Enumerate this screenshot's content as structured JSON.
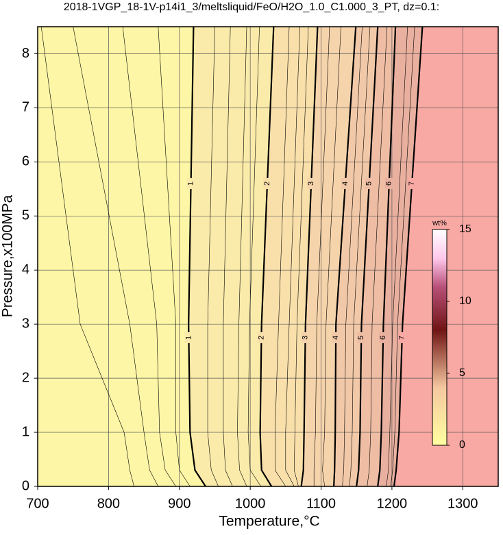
{
  "chart_data": {
    "type": "contour",
    "title": "2018-1VGP_18-1V-p14i1_3/meltsliquid/FeO/H2O_1.0_C1.000_3_PT, dz=0.1:",
    "x_label": "Temperature,°C",
    "y_label": "Pressure,x100MPa",
    "xlim": [
      700,
      1350
    ],
    "ylim": [
      0,
      8.5
    ],
    "xticks": [
      700,
      800,
      900,
      1000,
      1100,
      1200,
      1300
    ],
    "yticks": [
      0,
      1,
      2,
      3,
      4,
      5,
      6,
      7,
      8
    ],
    "grid": true,
    "pressures": [
      0,
      0.3,
      1,
      3,
      8.5
    ],
    "contours": [
      {
        "level": 1,
        "temperatures": [
          937,
          922,
          915,
          913,
          920
        ]
      },
      {
        "level": 2,
        "temperatures": [
          1030,
          1016,
          1014,
          1016,
          1033
        ]
      },
      {
        "level": 3,
        "temperatures": [
          1072,
          1075,
          1076,
          1078,
          1095
        ]
      },
      {
        "level": 4,
        "temperatures": [
          1118,
          1119,
          1120,
          1121,
          1149
        ]
      },
      {
        "level": 5,
        "temperatures": [
          1150,
          1153,
          1155,
          1157,
          1180
        ]
      },
      {
        "level": 6,
        "temperatures": [
          1180,
          1183,
          1185,
          1188,
          1205
        ]
      },
      {
        "level": 7,
        "temperatures": [
          1203,
          1206,
          1210,
          1215,
          1243
        ]
      }
    ],
    "label_pressures": [
      5.6,
      2.75
    ],
    "minor_contours": [
      [
        836,
        830,
        822,
        760,
        705
      ],
      [
        870,
        858,
        850,
        830,
        750
      ],
      [
        895,
        880,
        872,
        868,
        820
      ],
      [
        915,
        900,
        895,
        895,
        870
      ],
      [
        955,
        945,
        940,
        940,
        950
      ],
      [
        975,
        965,
        962,
        962,
        972
      ],
      [
        995,
        985,
        982,
        984,
        995
      ],
      [
        1015,
        1000,
        997,
        999,
        1013
      ],
      [
        1050,
        1035,
        1035,
        1040,
        1055
      ],
      [
        1062,
        1050,
        1050,
        1055,
        1070
      ],
      [
        1068,
        1062,
        1063,
        1066,
        1082
      ],
      [
        1090,
        1090,
        1092,
        1094,
        1112
      ],
      [
        1105,
        1102,
        1105,
        1107,
        1128
      ],
      [
        1130,
        1132,
        1133,
        1135,
        1158
      ],
      [
        1140,
        1142,
        1144,
        1146,
        1169
      ],
      [
        1165,
        1168,
        1170,
        1172,
        1193
      ],
      [
        1192,
        1195,
        1197,
        1201,
        1222
      ],
      [
        1198,
        1201,
        1204,
        1208,
        1232
      ]
    ],
    "band_colors": [
      "#fdf6a6",
      "#fbebaa",
      "#f9e0ab",
      "#f6d4ab",
      "#f2c9a8",
      "#eebda4",
      "#e9b09f",
      "#f9a9a3"
    ],
    "colorbar": {
      "label": "wt%",
      "lim": [
        0,
        15
      ],
      "ticks": [
        0,
        5,
        10,
        15
      ],
      "stops": [
        [
          0,
          "#ffffa0"
        ],
        [
          4,
          "#f5c8a0"
        ],
        [
          8,
          "#701414"
        ],
        [
          11,
          "#b85078"
        ],
        [
          13,
          "#ffc8ec"
        ],
        [
          15,
          "#ffffff"
        ]
      ]
    }
  }
}
